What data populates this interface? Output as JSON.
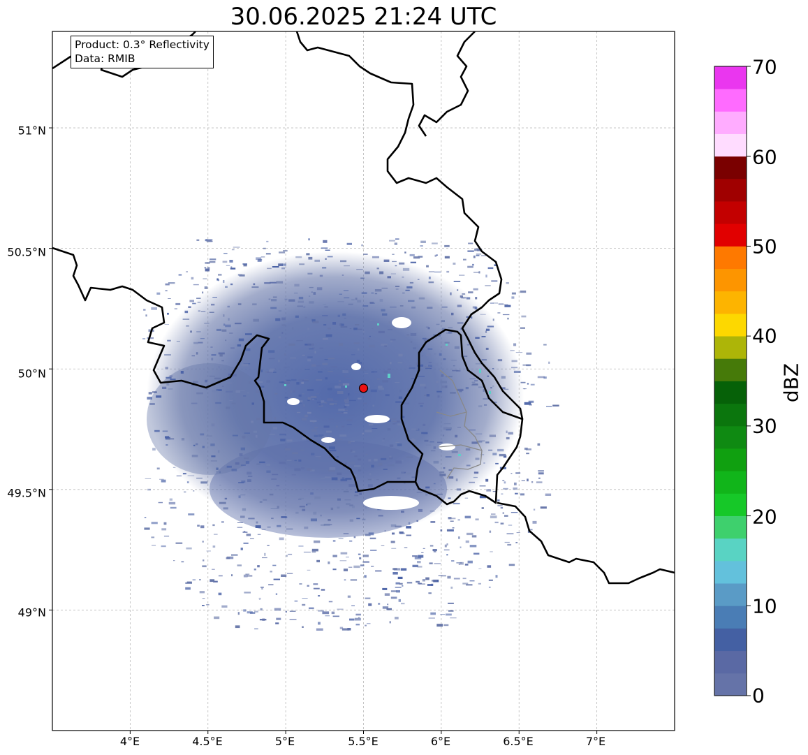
{
  "title": "30.06.2025 21:24 UTC",
  "info": {
    "product": "Product: 0.3° Reflectivity",
    "data": "Data: RMIB"
  },
  "map": {
    "lon_range": [
      3.5,
      7.5
    ],
    "lat_range": [
      48.5,
      51.4
    ],
    "lon_ticks": [
      "4°E",
      "4.5°E",
      "5°E",
      "5.5°E",
      "6°E",
      "6.5°E",
      "7°E"
    ],
    "lat_ticks": [
      "49°N",
      "49.5°N",
      "50°N",
      "50.5°N",
      "51°N"
    ],
    "radar_site": {
      "lon": 5.5,
      "lat": 49.92,
      "color": "#ee1111"
    },
    "echo_center": {
      "lon": 5.5,
      "lat": 49.9
    }
  },
  "colorbar": {
    "label": "dBZ",
    "range": [
      0,
      70
    ],
    "ticks": [
      "0",
      "10",
      "20",
      "30",
      "40",
      "50",
      "60",
      "70"
    ],
    "colors": [
      "#6573a8",
      "#5a69a4",
      "#4460a3",
      "#4a7db5",
      "#5a9bc6",
      "#63c1dc",
      "#59d3c3",
      "#3ed06d",
      "#16c828",
      "#11b51a",
      "#10a010",
      "#0f8a12",
      "#0b760d",
      "#066108",
      "#467a09",
      "#adb508",
      "#fdd800",
      "#fdb400",
      "#fd9500",
      "#fe7900",
      "#e10000",
      "#c30000",
      "#a00000",
      "#7a0000",
      "#ffdcff",
      "#ffacff",
      "#ff6bff",
      "#ea36ef"
    ]
  }
}
